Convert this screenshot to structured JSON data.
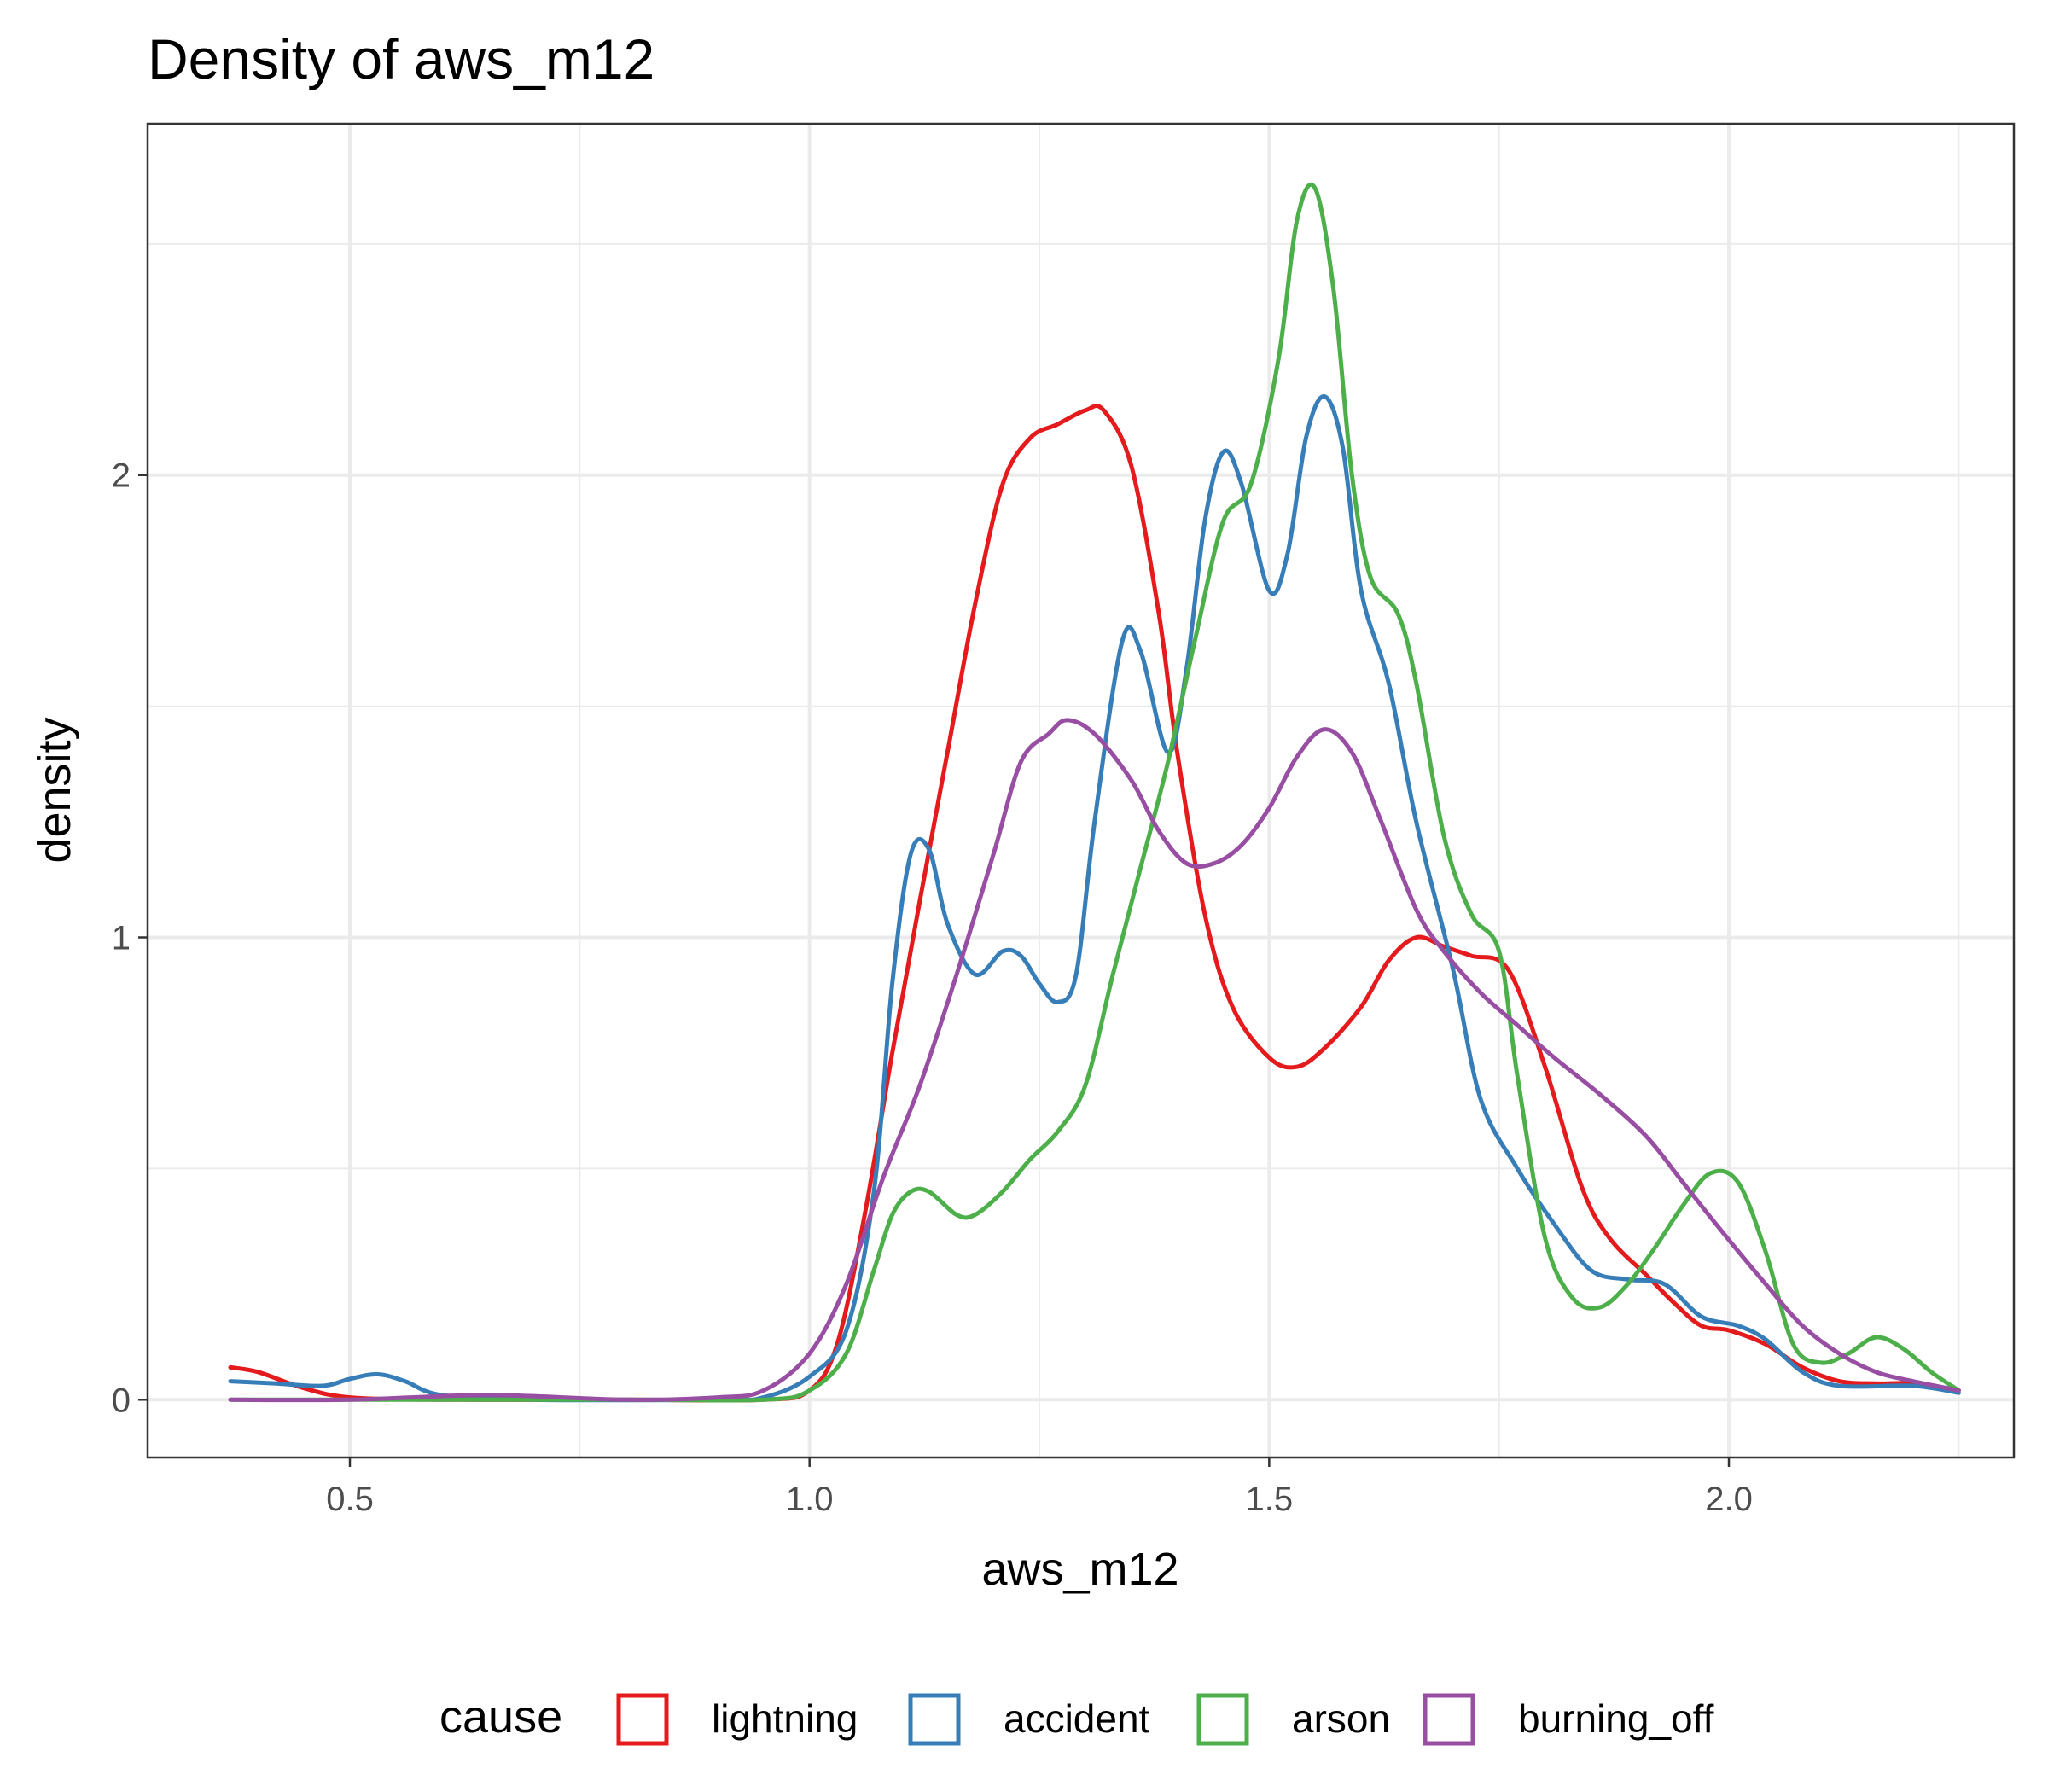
{
  "chart_data": {
    "type": "line",
    "title": "Density of aws_m12",
    "xlabel": "aws_m12",
    "ylabel": "density",
    "xlim": [
      0.28,
      2.31
    ],
    "ylim": [
      -0.125,
      2.76
    ],
    "x_ticks": [
      0.5,
      1.0,
      1.5,
      2.0
    ],
    "x_tick_labels": [
      "0.5",
      "1.0",
      "1.5",
      "2.0"
    ],
    "y_ticks": [
      0,
      1,
      2
    ],
    "y_tick_labels": [
      "0",
      "1",
      "2"
    ],
    "grid": true,
    "legend": {
      "title": "cause",
      "position": "bottom",
      "entries": [
        "lightning",
        "accident",
        "arson",
        "burning_off"
      ]
    },
    "series": [
      {
        "name": "lightning",
        "color": "#E41A1C",
        "points": [
          [
            0.37,
            0.07
          ],
          [
            0.4,
            0.06
          ],
          [
            0.45,
            0.025
          ],
          [
            0.5,
            0.005
          ],
          [
            0.6,
            0.0
          ],
          [
            0.8,
            0.0
          ],
          [
            0.95,
            0.0
          ],
          [
            1.0,
            0.02
          ],
          [
            1.03,
            0.12
          ],
          [
            1.06,
            0.4
          ],
          [
            1.09,
            0.75
          ],
          [
            1.12,
            1.08
          ],
          [
            1.15,
            1.4
          ],
          [
            1.18,
            1.72
          ],
          [
            1.21,
            1.98
          ],
          [
            1.24,
            2.08
          ],
          [
            1.27,
            2.11
          ],
          [
            1.3,
            2.14
          ],
          [
            1.32,
            2.14
          ],
          [
            1.35,
            2.02
          ],
          [
            1.38,
            1.7
          ],
          [
            1.4,
            1.4
          ],
          [
            1.43,
            1.05
          ],
          [
            1.46,
            0.85
          ],
          [
            1.5,
            0.74
          ],
          [
            1.53,
            0.72
          ],
          [
            1.56,
            0.76
          ],
          [
            1.6,
            0.85
          ],
          [
            1.63,
            0.95
          ],
          [
            1.66,
            1.0
          ],
          [
            1.69,
            0.98
          ],
          [
            1.72,
            0.96
          ],
          [
            1.76,
            0.93
          ],
          [
            1.8,
            0.72
          ],
          [
            1.84,
            0.46
          ],
          [
            1.87,
            0.35
          ],
          [
            1.91,
            0.27
          ],
          [
            1.94,
            0.21
          ],
          [
            1.97,
            0.16
          ],
          [
            2.0,
            0.15
          ],
          [
            2.04,
            0.12
          ],
          [
            2.08,
            0.07
          ],
          [
            2.12,
            0.04
          ],
          [
            2.16,
            0.035
          ],
          [
            2.2,
            0.035
          ],
          [
            2.25,
            0.02
          ]
        ]
      },
      {
        "name": "accident",
        "color": "#377EB8",
        "points": [
          [
            0.37,
            0.04
          ],
          [
            0.42,
            0.035
          ],
          [
            0.47,
            0.03
          ],
          [
            0.5,
            0.045
          ],
          [
            0.53,
            0.055
          ],
          [
            0.56,
            0.04
          ],
          [
            0.6,
            0.01
          ],
          [
            0.7,
            0.0
          ],
          [
            0.9,
            0.0
          ],
          [
            0.95,
            0.005
          ],
          [
            1.0,
            0.05
          ],
          [
            1.04,
            0.15
          ],
          [
            1.07,
            0.45
          ],
          [
            1.09,
            0.9
          ],
          [
            1.11,
            1.18
          ],
          [
            1.13,
            1.19
          ],
          [
            1.15,
            1.03
          ],
          [
            1.18,
            0.92
          ],
          [
            1.21,
            0.97
          ],
          [
            1.23,
            0.96
          ],
          [
            1.25,
            0.9
          ],
          [
            1.27,
            0.86
          ],
          [
            1.29,
            0.92
          ],
          [
            1.31,
            1.25
          ],
          [
            1.34,
            1.64
          ],
          [
            1.36,
            1.62
          ],
          [
            1.39,
            1.4
          ],
          [
            1.41,
            1.58
          ],
          [
            1.43,
            1.9
          ],
          [
            1.45,
            2.05
          ],
          [
            1.47,
            1.98
          ],
          [
            1.5,
            1.75
          ],
          [
            1.52,
            1.83
          ],
          [
            1.54,
            2.08
          ],
          [
            1.56,
            2.17
          ],
          [
            1.58,
            2.06
          ],
          [
            1.6,
            1.75
          ],
          [
            1.63,
            1.55
          ],
          [
            1.66,
            1.25
          ],
          [
            1.7,
            0.93
          ],
          [
            1.73,
            0.65
          ],
          [
            1.77,
            0.5
          ],
          [
            1.81,
            0.38
          ],
          [
            1.85,
            0.28
          ],
          [
            1.89,
            0.26
          ],
          [
            1.93,
            0.25
          ],
          [
            1.97,
            0.18
          ],
          [
            2.01,
            0.16
          ],
          [
            2.04,
            0.13
          ],
          [
            2.08,
            0.06
          ],
          [
            2.12,
            0.03
          ],
          [
            2.2,
            0.03
          ],
          [
            2.25,
            0.015
          ]
        ]
      },
      {
        "name": "arson",
        "color": "#4DAF4A",
        "points": [
          [
            0.37,
            0.0
          ],
          [
            0.8,
            0.0
          ],
          [
            0.95,
            0.0
          ],
          [
            1.0,
            0.02
          ],
          [
            1.04,
            0.1
          ],
          [
            1.07,
            0.28
          ],
          [
            1.09,
            0.4
          ],
          [
            1.11,
            0.45
          ],
          [
            1.13,
            0.45
          ],
          [
            1.16,
            0.4
          ],
          [
            1.18,
            0.4
          ],
          [
            1.21,
            0.45
          ],
          [
            1.24,
            0.52
          ],
          [
            1.27,
            0.58
          ],
          [
            1.3,
            0.68
          ],
          [
            1.33,
            0.92
          ],
          [
            1.36,
            1.15
          ],
          [
            1.39,
            1.38
          ],
          [
            1.42,
            1.65
          ],
          [
            1.45,
            1.9
          ],
          [
            1.48,
            1.98
          ],
          [
            1.51,
            2.25
          ],
          [
            1.53,
            2.55
          ],
          [
            1.55,
            2.62
          ],
          [
            1.57,
            2.4
          ],
          [
            1.59,
            2.0
          ],
          [
            1.61,
            1.78
          ],
          [
            1.64,
            1.7
          ],
          [
            1.66,
            1.55
          ],
          [
            1.69,
            1.22
          ],
          [
            1.72,
            1.05
          ],
          [
            1.75,
            0.97
          ],
          [
            1.77,
            0.7
          ],
          [
            1.8,
            0.35
          ],
          [
            1.83,
            0.22
          ],
          [
            1.86,
            0.2
          ],
          [
            1.89,
            0.25
          ],
          [
            1.92,
            0.33
          ],
          [
            1.95,
            0.42
          ],
          [
            1.98,
            0.49
          ],
          [
            2.01,
            0.47
          ],
          [
            2.04,
            0.32
          ],
          [
            2.07,
            0.12
          ],
          [
            2.1,
            0.08
          ],
          [
            2.13,
            0.1
          ],
          [
            2.16,
            0.135
          ],
          [
            2.19,
            0.11
          ],
          [
            2.22,
            0.06
          ],
          [
            2.25,
            0.02
          ]
        ]
      },
      {
        "name": "burning_off",
        "color": "#984EA3",
        "points": [
          [
            0.37,
            0.0
          ],
          [
            0.5,
            0.0
          ],
          [
            0.65,
            0.01
          ],
          [
            0.8,
            0.0
          ],
          [
            0.9,
            0.005
          ],
          [
            0.95,
            0.02
          ],
          [
            1.0,
            0.1
          ],
          [
            1.04,
            0.25
          ],
          [
            1.08,
            0.48
          ],
          [
            1.12,
            0.68
          ],
          [
            1.16,
            0.92
          ],
          [
            1.2,
            1.18
          ],
          [
            1.23,
            1.38
          ],
          [
            1.26,
            1.44
          ],
          [
            1.28,
            1.47
          ],
          [
            1.31,
            1.44
          ],
          [
            1.35,
            1.34
          ],
          [
            1.38,
            1.23
          ],
          [
            1.41,
            1.16
          ],
          [
            1.44,
            1.16
          ],
          [
            1.47,
            1.2
          ],
          [
            1.5,
            1.28
          ],
          [
            1.53,
            1.39
          ],
          [
            1.56,
            1.45
          ],
          [
            1.59,
            1.4
          ],
          [
            1.62,
            1.26
          ],
          [
            1.66,
            1.06
          ],
          [
            1.69,
            0.97
          ],
          [
            1.73,
            0.88
          ],
          [
            1.77,
            0.81
          ],
          [
            1.81,
            0.74
          ],
          [
            1.86,
            0.66
          ],
          [
            1.91,
            0.57
          ],
          [
            1.95,
            0.47
          ],
          [
            1.99,
            0.37
          ],
          [
            2.04,
            0.25
          ],
          [
            2.08,
            0.16
          ],
          [
            2.12,
            0.1
          ],
          [
            2.16,
            0.06
          ],
          [
            2.2,
            0.04
          ],
          [
            2.25,
            0.02
          ]
        ]
      }
    ]
  }
}
